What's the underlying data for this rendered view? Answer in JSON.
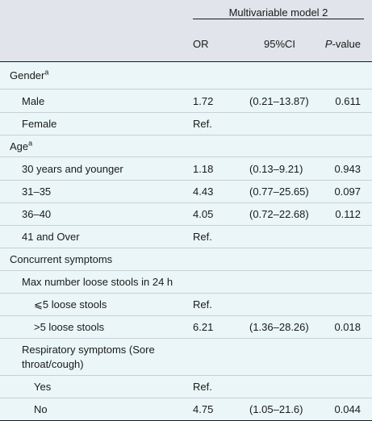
{
  "header": {
    "group_label": "Multivariable model 2",
    "col_or": "OR",
    "col_ci": "95%CI",
    "col_p_italic": "P",
    "col_p_rest": "-value"
  },
  "rows": [
    {
      "label": "Gender",
      "sup": "a",
      "or": "",
      "ci": "",
      "p": ""
    },
    {
      "label": "Male",
      "or": "1.72",
      "ci": "(0.21–13.87)",
      "p": "0.611"
    },
    {
      "label": "Female",
      "or": "Ref.",
      "ci": "",
      "p": ""
    },
    {
      "label": "Age",
      "sup": "a",
      "or": "",
      "ci": "",
      "p": ""
    },
    {
      "label": "30 years and younger",
      "or": "1.18",
      "ci": "(0.13–9.21)",
      "p": "0.943"
    },
    {
      "label": "31–35",
      "or": "4.43",
      "ci": "(0.77–25.65)",
      "p": "0.097"
    },
    {
      "label": "36–40",
      "or": "4.05",
      "ci": "(0.72–22.68)",
      "p": "0.112"
    },
    {
      "label": "41 and Over",
      "or": "Ref.",
      "ci": "",
      "p": ""
    },
    {
      "label": "Concurrent symptoms",
      "or": "",
      "ci": "",
      "p": ""
    },
    {
      "label": "Max number loose stools in 24 h",
      "or": "",
      "ci": "",
      "p": ""
    },
    {
      "label": "⩽5 loose stools",
      "or": "Ref.",
      "ci": "",
      "p": ""
    },
    {
      "label": ">5 loose stools",
      "or": "6.21",
      "ci": "(1.36–28.26)",
      "p": "0.018"
    },
    {
      "label": "Respiratory symptoms (Sore throat/cough)",
      "or": "",
      "ci": "",
      "p": ""
    },
    {
      "label": "Yes",
      "or": "Ref.",
      "ci": "",
      "p": ""
    },
    {
      "label": "No",
      "or": "4.75",
      "ci": "(1.05–21.6)",
      "p": "0.044"
    }
  ]
}
